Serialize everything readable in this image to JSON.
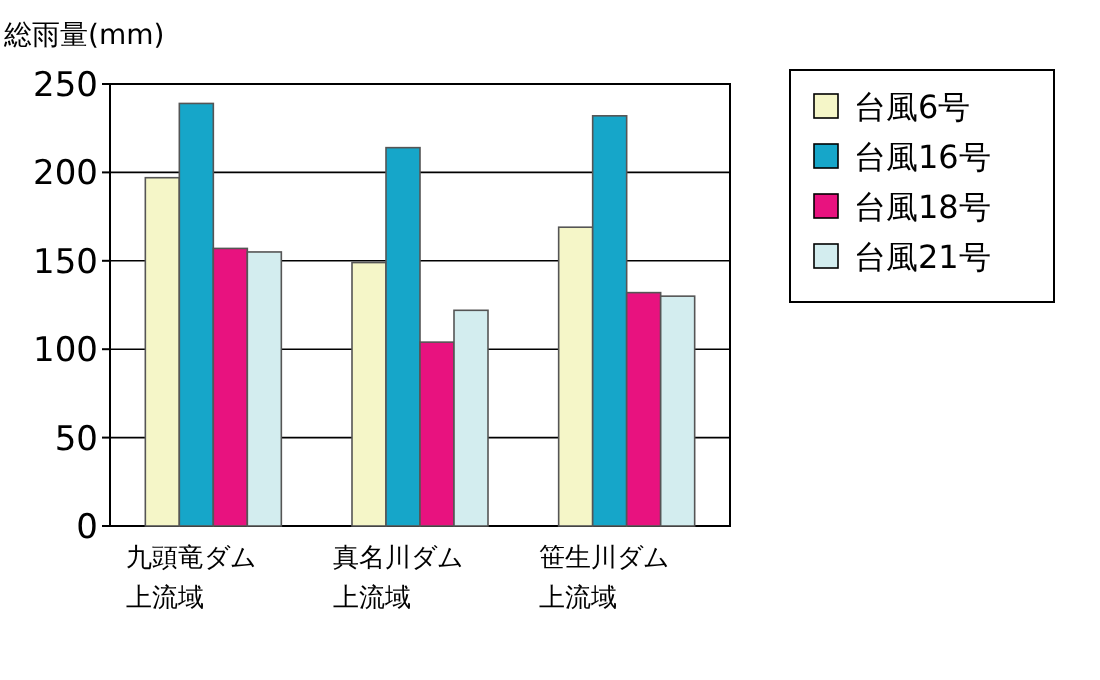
{
  "chart_data": {
    "type": "bar",
    "ylabel": "総雨量(mm)",
    "categories": [
      "九頭竜ダム上流域",
      "真名川ダム上流域",
      "笹生川ダム上流域"
    ],
    "series": [
      {
        "name": "台風6号",
        "color": "#f5f6c8",
        "values": [
          197,
          149,
          169
        ]
      },
      {
        "name": "台風16号",
        "color": "#16a6c9",
        "values": [
          239,
          214,
          232
        ]
      },
      {
        "name": "台風18号",
        "color": "#e8127f",
        "values": [
          157,
          104,
          132
        ]
      },
      {
        "name": "台風21号",
        "color": "#d3edef",
        "values": [
          155,
          122,
          130
        ]
      }
    ],
    "ylim": [
      0,
      250
    ],
    "yticks": [
      0,
      50,
      100,
      150,
      200,
      250
    ],
    "grid": "y",
    "legend": "top right"
  }
}
